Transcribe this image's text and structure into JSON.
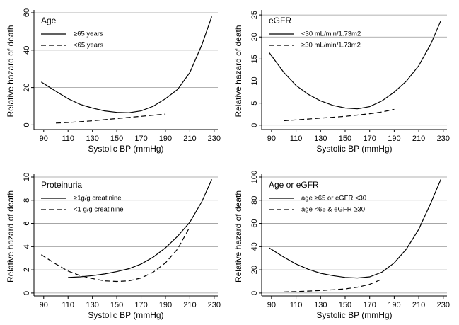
{
  "chart_data": [
    {
      "type": "line",
      "legend_title": "Age",
      "x_label": "Systolic BP (mmHg)",
      "y_label": "Relative hazard of death",
      "x": [
        88,
        100,
        110,
        120,
        130,
        140,
        150,
        160,
        170,
        180,
        190,
        200,
        210,
        220,
        228
      ],
      "series": [
        {
          "name": "≥65 years",
          "color": "#000000",
          "dash": "solid",
          "values": [
            23,
            18,
            14,
            11,
            9,
            7.5,
            6.7,
            6.5,
            7.5,
            10,
            14,
            19,
            28,
            43,
            58
          ]
        },
        {
          "name": "<65 years",
          "color": "#000000",
          "dash": "dashed",
          "values": [
            null,
            1,
            1.3,
            1.7,
            2.2,
            2.8,
            3.4,
            4,
            4.6,
            5.2,
            5.8,
            null,
            null,
            null,
            null
          ]
        }
      ],
      "xlim": [
        82,
        233
      ],
      "xticks": [
        90,
        110,
        130,
        150,
        170,
        190,
        210,
        230
      ],
      "ylim": [
        -2.5,
        60
      ],
      "yticks": [
        0,
        20,
        40,
        60
      ],
      "grid": true
    },
    {
      "type": "line",
      "legend_title": "eGFR",
      "x_label": "Systolic BP (mmHg)",
      "y_label": "Relative hazard of death",
      "x": [
        88,
        100,
        110,
        120,
        130,
        140,
        150,
        160,
        170,
        180,
        190,
        200,
        210,
        220,
        228
      ],
      "series": [
        {
          "name": "<30 mL/min/1.73m2",
          "color": "#000000",
          "dash": "solid",
          "values": [
            16.5,
            12,
            9,
            7,
            5.5,
            4.5,
            3.9,
            3.7,
            4.2,
            5.5,
            7.5,
            10,
            13.5,
            18.5,
            23.7
          ]
        },
        {
          "name": "≥30 mL/min/1.73m2",
          "color": "#000000",
          "dash": "dashed",
          "values": [
            null,
            1,
            1.2,
            1.4,
            1.6,
            1.8,
            2,
            2.3,
            2.6,
            3,
            3.6,
            null,
            null,
            null,
            null
          ]
        }
      ],
      "xlim": [
        82,
        233
      ],
      "xticks": [
        90,
        110,
        130,
        150,
        170,
        190,
        210,
        230
      ],
      "ylim": [
        -1,
        25.5
      ],
      "yticks": [
        0,
        5,
        10,
        15,
        20,
        25
      ],
      "grid": true
    },
    {
      "type": "line",
      "legend_title": "Proteinuria",
      "x_label": "Systolic BP (mmHg)",
      "y_label": "Relative hazard of death",
      "x": [
        88,
        100,
        110,
        120,
        130,
        140,
        150,
        160,
        170,
        180,
        190,
        200,
        210,
        220,
        228
      ],
      "series": [
        {
          "name": "≥1g/g creatinine",
          "color": "#000000",
          "dash": "solid",
          "values": [
            null,
            null,
            1.35,
            1.4,
            1.5,
            1.65,
            1.85,
            2.1,
            2.5,
            3.1,
            3.9,
            4.9,
            6.1,
            7.9,
            9.8
          ]
        },
        {
          "name": "<1 g/g creatinine",
          "color": "#000000",
          "dash": "dashed",
          "values": [
            3.3,
            2.5,
            1.9,
            1.5,
            1.25,
            1.05,
            1,
            1.05,
            1.3,
            1.8,
            2.6,
            3.8,
            5.7,
            null,
            null
          ]
        }
      ],
      "xlim": [
        82,
        233
      ],
      "xticks": [
        90,
        110,
        130,
        150,
        170,
        190,
        210,
        230
      ],
      "ylim": [
        -0.25,
        10
      ],
      "yticks": [
        0,
        2,
        4,
        6,
        8,
        10
      ],
      "grid": true
    },
    {
      "type": "line",
      "legend_title": "Age or eGFR",
      "x_label": "Systolic BP (mmHg)",
      "y_label": "Relative hazard of death",
      "x": [
        88,
        100,
        110,
        120,
        130,
        140,
        150,
        160,
        170,
        180,
        190,
        200,
        210,
        220,
        228
      ],
      "series": [
        {
          "name": "age ≥65 or eGFR <30",
          "color": "#000000",
          "dash": "solid",
          "values": [
            39,
            31,
            25,
            20.5,
            17,
            15,
            13.5,
            13,
            14,
            18,
            26,
            38,
            55,
            78,
            98
          ]
        },
        {
          "name": "age <65 & eGFR ≥30",
          "color": "#000000",
          "dash": "dashed",
          "values": [
            null,
            1,
            1.3,
            1.7,
            2.2,
            2.8,
            3.6,
            5,
            7.5,
            12,
            null,
            null,
            null,
            null,
            null
          ]
        }
      ],
      "xlim": [
        82,
        233
      ],
      "xticks": [
        90,
        110,
        130,
        150,
        170,
        190,
        210,
        230
      ],
      "ylim": [
        -2.5,
        100
      ],
      "yticks": [
        0,
        20,
        40,
        60,
        80,
        100
      ],
      "grid": true
    }
  ]
}
